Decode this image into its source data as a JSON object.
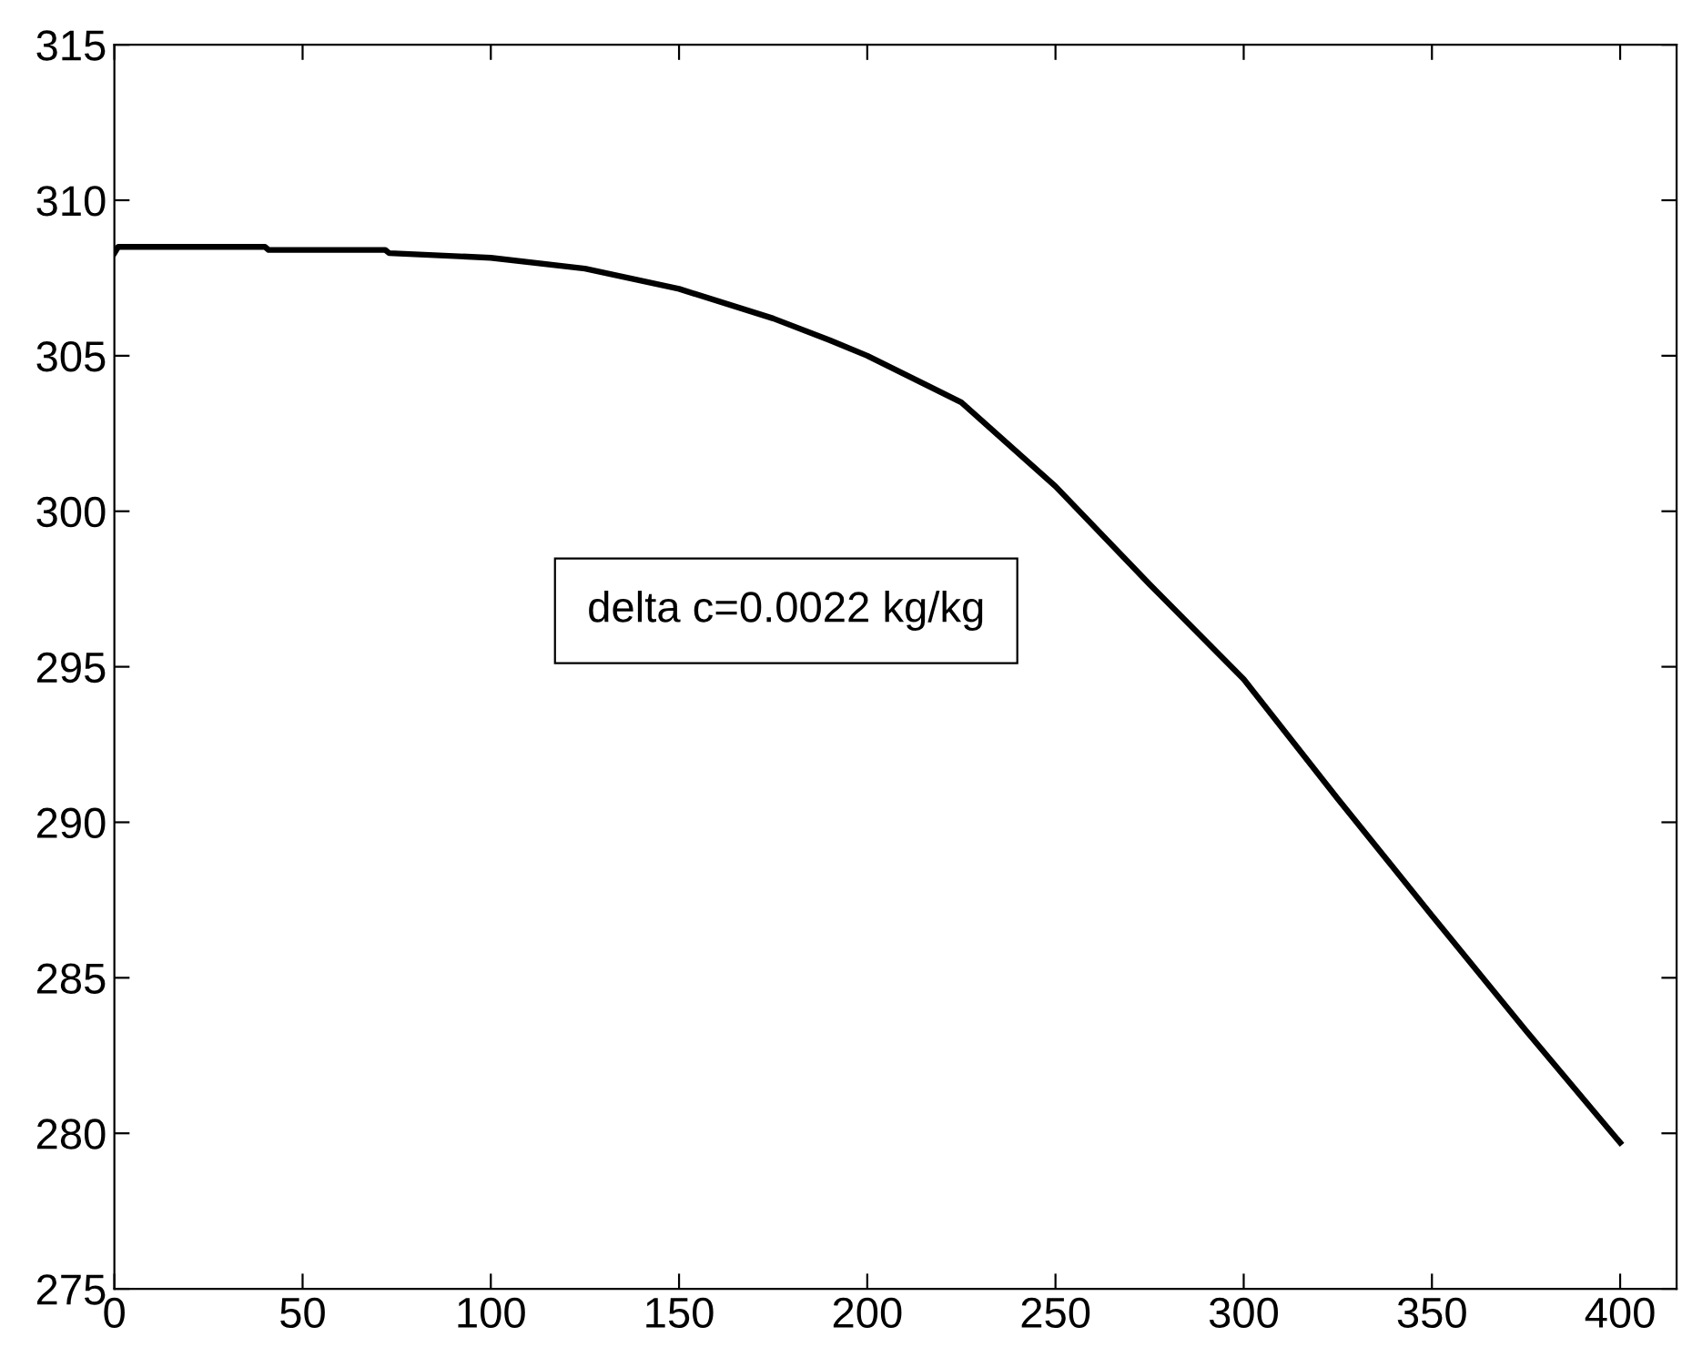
{
  "chart_data": {
    "type": "line",
    "x": [
      0,
      1,
      2,
      40,
      41,
      72,
      73,
      100,
      125,
      150,
      175,
      190,
      200,
      225,
      250,
      275,
      300,
      325,
      350,
      375,
      400
    ],
    "series": [
      {
        "color": "#000000",
        "values": [
          308.3,
          308.5,
          308.5,
          308.5,
          308.4,
          308.4,
          308.3,
          308.15,
          307.8,
          307.15,
          306.2,
          305.5,
          305.0,
          303.5,
          300.8,
          297.65,
          294.6,
          290.75,
          287.0,
          283.3,
          279.7
        ]
      }
    ],
    "xlim": [
      0,
      415
    ],
    "xticks": [
      0,
      50,
      100,
      150,
      200,
      250,
      300,
      350,
      400
    ],
    "ylim": [
      275,
      315
    ],
    "yticks": [
      275,
      280,
      285,
      290,
      295,
      300,
      305,
      310,
      315
    ],
    "annotations": [
      "delta c=0.0022 kg/kg"
    ],
    "grid": false,
    "legend": false,
    "marker": "none",
    "line_style": "solid"
  }
}
